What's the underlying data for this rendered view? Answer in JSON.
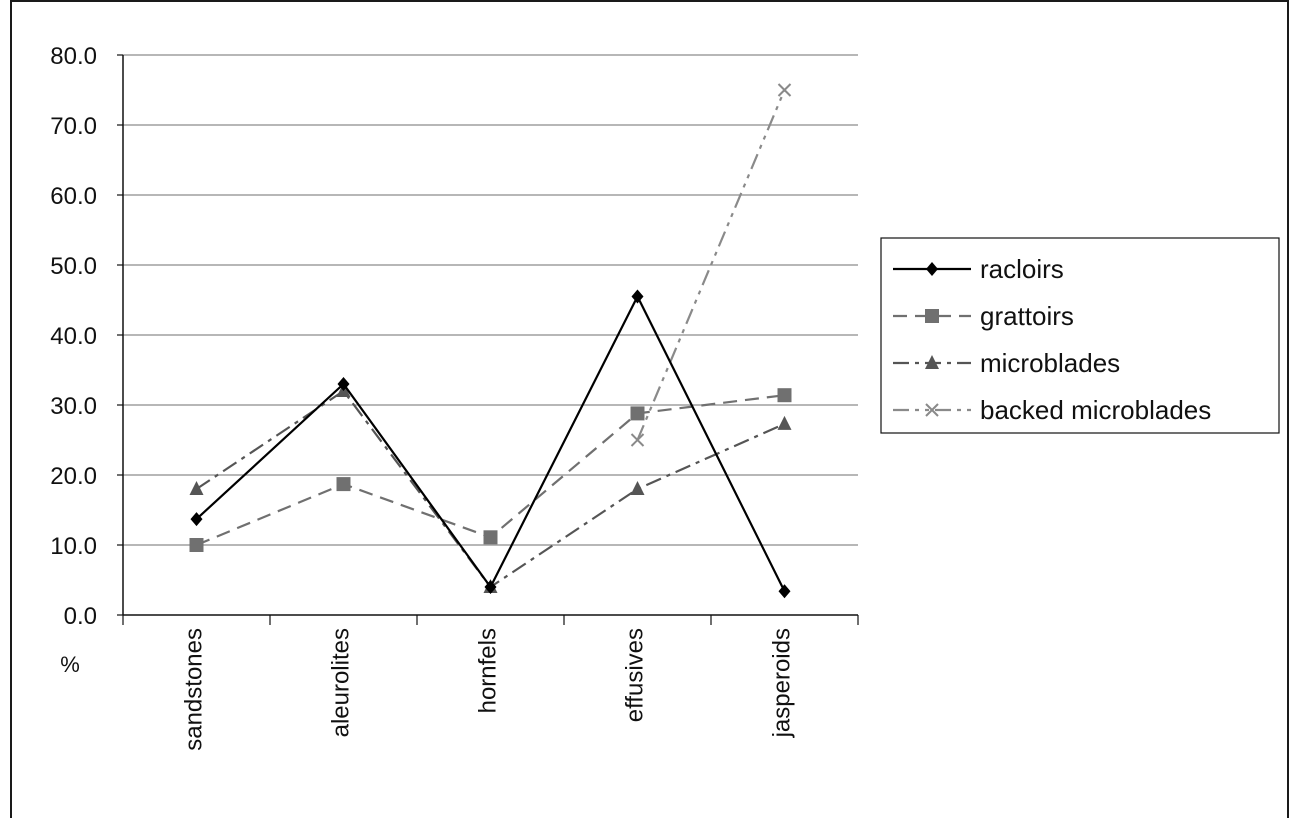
{
  "chart_data": {
    "type": "line",
    "title": "",
    "xlabel": "",
    "ylabel": "%",
    "ylim": [
      0,
      80
    ],
    "yticks": [
      "0.0",
      "10.0",
      "20.0",
      "30.0",
      "40.0",
      "50.0",
      "60.0",
      "70.0",
      "80.0"
    ],
    "grid": true,
    "legend_position": "right",
    "categories": [
      "sandstones",
      "aleurolites",
      "hornfels",
      "effusives",
      "jasperoids"
    ],
    "series": [
      {
        "name": "racloirs",
        "values": [
          13.7,
          33.0,
          4.0,
          45.5,
          3.4
        ],
        "color": "#000000",
        "marker": "diamond",
        "dash": ""
      },
      {
        "name": "grattoirs",
        "values": [
          10.0,
          18.7,
          11.1,
          28.8,
          31.4
        ],
        "color": "#707070",
        "marker": "square",
        "dash": "14,8"
      },
      {
        "name": "microblades",
        "values": [
          18.0,
          32.0,
          4.0,
          18.0,
          27.3
        ],
        "color": "#555555",
        "marker": "triangle",
        "dash": "16,6,4,6"
      },
      {
        "name": "backed microblades",
        "values": [
          null,
          null,
          null,
          25.0,
          75.0
        ],
        "color": "#8a8a8a",
        "marker": "x",
        "dash": "16,6,4,6,4,6"
      }
    ]
  }
}
